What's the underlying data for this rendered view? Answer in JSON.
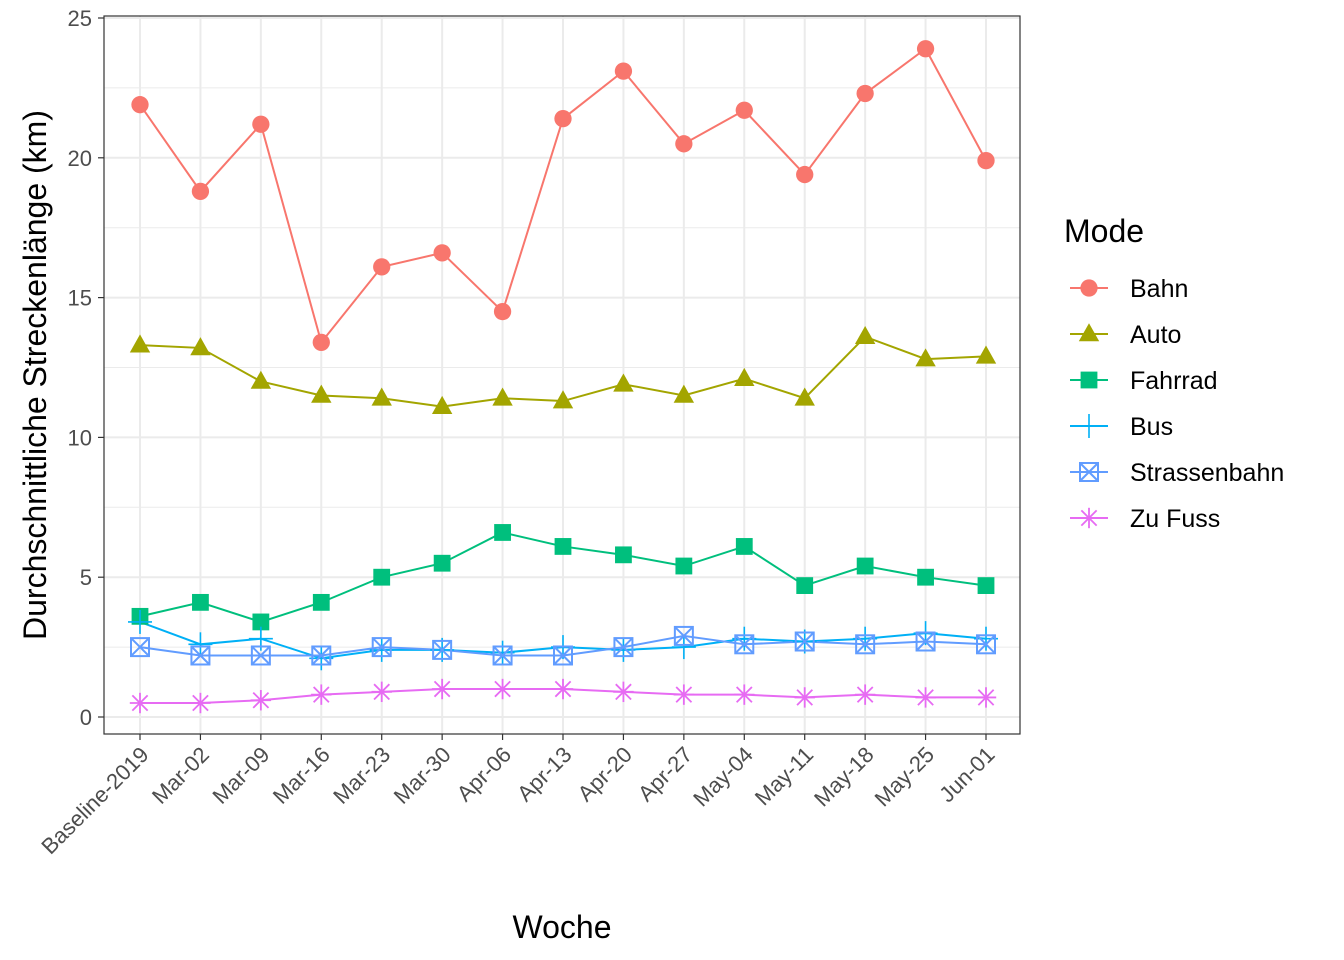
{
  "chart_data": {
    "type": "line",
    "title": "",
    "xlabel": "Woche",
    "ylabel": "Durchschnittliche Streckenlänge (km)",
    "categories": [
      "Baseline-2019",
      "Mar-02",
      "Mar-09",
      "Mar-16",
      "Mar-23",
      "Mar-30",
      "Apr-06",
      "Apr-13",
      "Apr-20",
      "Apr-27",
      "May-04",
      "May-11",
      "May-18",
      "May-25",
      "Jun-01"
    ],
    "ylim": [
      0,
      25
    ],
    "yticks": [
      0,
      5,
      10,
      15,
      20,
      25
    ],
    "grid": true,
    "legend": {
      "title": "Mode",
      "position": "right"
    },
    "series": [
      {
        "name": "Bahn",
        "color": "#F8766D",
        "marker": "circle",
        "values": [
          21.9,
          18.8,
          21.2,
          13.4,
          16.1,
          16.6,
          14.5,
          21.4,
          23.1,
          20.5,
          21.7,
          19.4,
          22.3,
          23.9,
          19.9
        ]
      },
      {
        "name": "Auto",
        "color": "#A3A500",
        "marker": "triangle",
        "values": [
          13.3,
          13.2,
          12.0,
          11.5,
          11.4,
          11.1,
          11.4,
          11.3,
          11.9,
          11.5,
          12.1,
          11.4,
          13.6,
          12.8,
          12.9
        ]
      },
      {
        "name": "Fahrrad",
        "color": "#00BF7D",
        "marker": "square",
        "values": [
          3.6,
          4.1,
          3.4,
          4.1,
          5.0,
          5.5,
          6.6,
          6.1,
          5.8,
          5.4,
          6.1,
          4.7,
          5.4,
          5.0,
          4.7
        ]
      },
      {
        "name": "Bus",
        "color": "#00B0F6",
        "marker": "plus",
        "values": [
          3.4,
          2.6,
          2.8,
          2.1,
          2.4,
          2.4,
          2.3,
          2.5,
          2.4,
          2.5,
          2.8,
          2.7,
          2.8,
          3.0,
          2.8
        ]
      },
      {
        "name": "Strassenbahn",
        "color": "#619CFF",
        "marker": "boxcross",
        "values": [
          2.5,
          2.2,
          2.2,
          2.2,
          2.5,
          2.4,
          2.2,
          2.2,
          2.5,
          2.9,
          2.6,
          2.7,
          2.6,
          2.7,
          2.6
        ]
      },
      {
        "name": "Zu Fuss",
        "color": "#E76BF3",
        "marker": "asterisk",
        "values": [
          0.5,
          0.5,
          0.6,
          0.8,
          0.9,
          1.0,
          1.0,
          1.0,
          0.9,
          0.8,
          0.8,
          0.7,
          0.8,
          0.7,
          0.7
        ]
      }
    ]
  }
}
